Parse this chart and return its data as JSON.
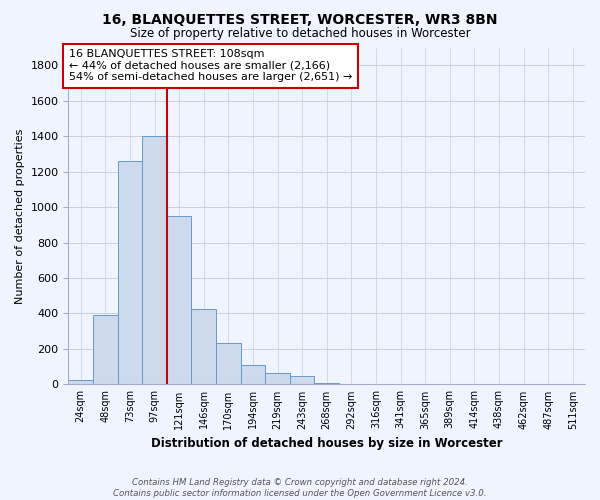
{
  "title": "16, BLANQUETTES STREET, WORCESTER, WR3 8BN",
  "subtitle": "Size of property relative to detached houses in Worcester",
  "xlabel": "Distribution of detached houses by size in Worcester",
  "ylabel": "Number of detached properties",
  "bar_labels": [
    "24sqm",
    "48sqm",
    "73sqm",
    "97sqm",
    "121sqm",
    "146sqm",
    "170sqm",
    "194sqm",
    "219sqm",
    "243sqm",
    "268sqm",
    "292sqm",
    "316sqm",
    "341sqm",
    "365sqm",
    "389sqm",
    "414sqm",
    "438sqm",
    "462sqm",
    "487sqm",
    "511sqm"
  ],
  "bar_values": [
    25,
    390,
    1260,
    1400,
    950,
    425,
    235,
    110,
    65,
    50,
    10,
    5,
    2,
    1,
    0,
    0,
    0,
    0,
    0,
    0,
    0
  ],
  "bar_color": "#ccdaec",
  "bar_edge_color": "#6699cc",
  "property_line_color": "#cc0000",
  "annotation_line1": "16 BLANQUETTES STREET: 108sqm",
  "annotation_line2": "← 44% of detached houses are smaller (2,166)",
  "annotation_line3": "54% of semi-detached houses are larger (2,651) →",
  "annotation_box_color": "white",
  "annotation_box_edge_color": "#cc0000",
  "ylim": [
    0,
    1900
  ],
  "yticks": [
    0,
    200,
    400,
    600,
    800,
    1000,
    1200,
    1400,
    1600,
    1800
  ],
  "footer_text": "Contains HM Land Registry data © Crown copyright and database right 2024.\nContains public sector information licensed under the Open Government Licence v3.0.",
  "bg_color": "#f0f4ff",
  "grid_color": "#c8d0e0"
}
